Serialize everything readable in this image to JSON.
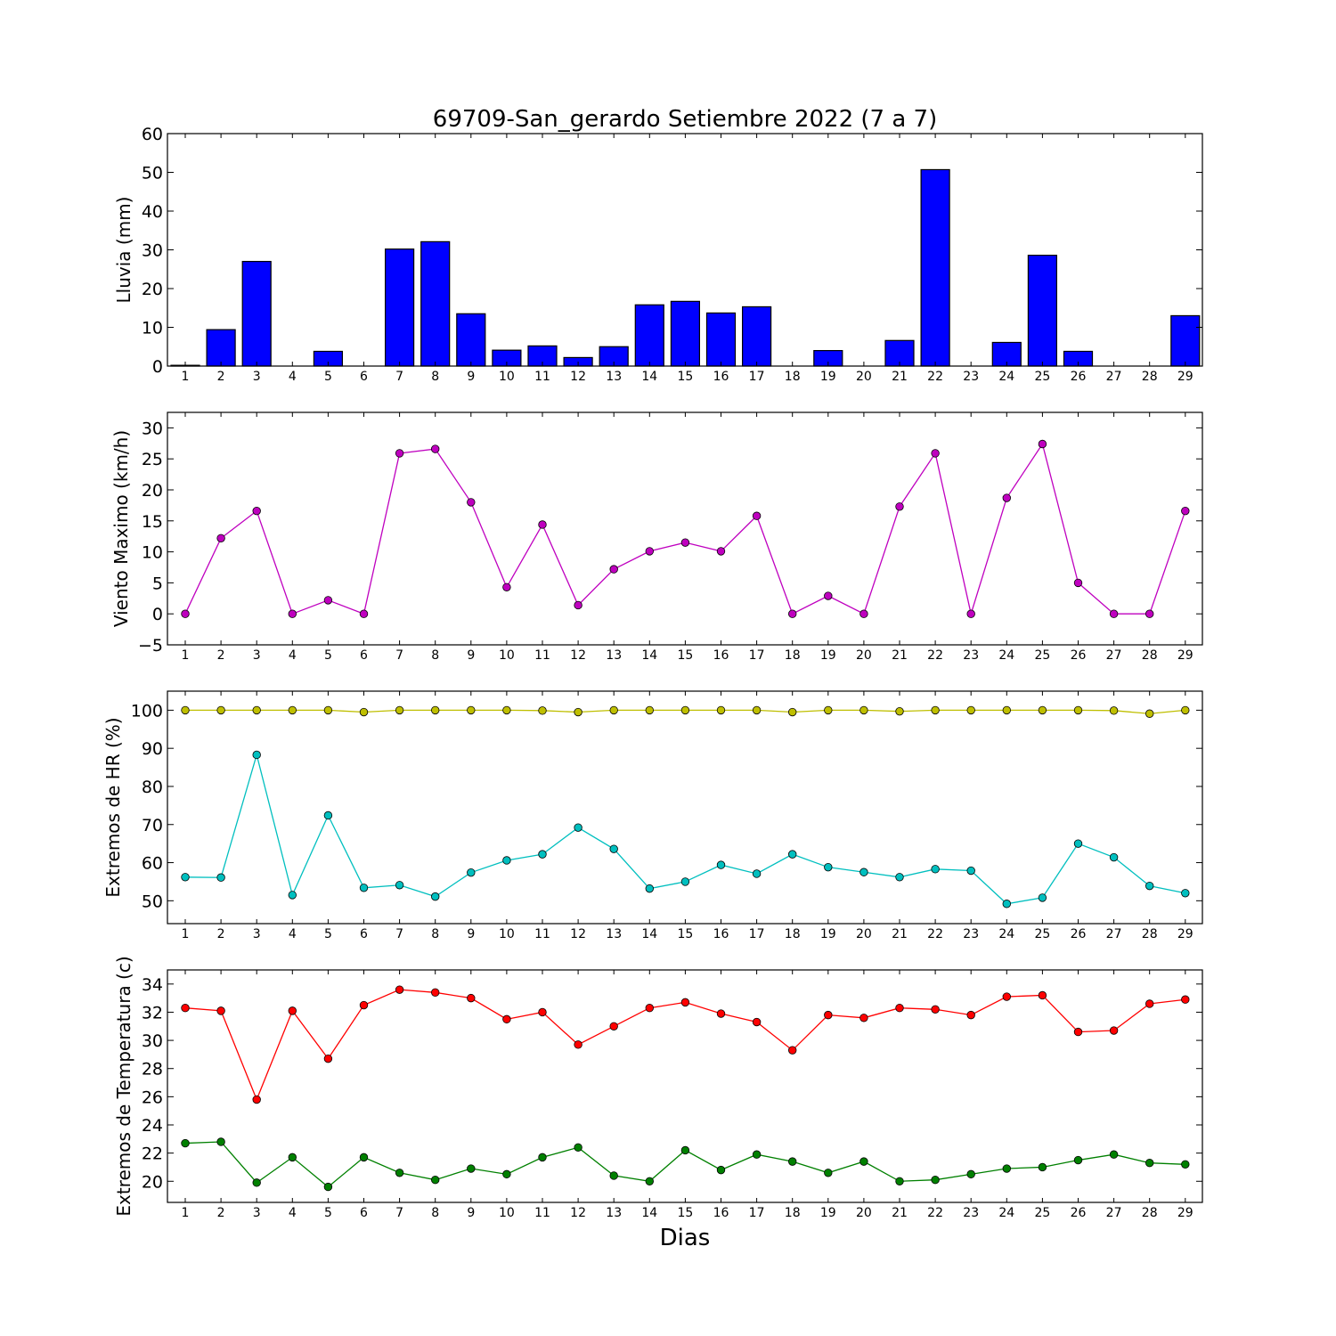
{
  "chart_data": [
    {
      "type": "bar",
      "title": "69709-San_gerardo Setiembre 2022  (7 a 7)",
      "ylabel": "Lluvia (mm)",
      "xlabel": "",
      "categories": [
        "1",
        "2",
        "3",
        "4",
        "5",
        "6",
        "7",
        "8",
        "9",
        "10",
        "11",
        "12",
        "13",
        "14",
        "15",
        "16",
        "17",
        "18",
        "19",
        "20",
        "21",
        "22",
        "23",
        "24",
        "25",
        "26",
        "27",
        "28",
        "29"
      ],
      "values": [
        0.2,
        9.4,
        27.0,
        0,
        3.8,
        0,
        30.2,
        32.1,
        13.5,
        4.1,
        5.2,
        2.2,
        5.0,
        15.8,
        16.7,
        13.7,
        15.3,
        0,
        4.0,
        0,
        6.6,
        50.7,
        0,
        6.1,
        28.6,
        3.8,
        0,
        0,
        13.0
      ],
      "ylim": [
        0,
        60
      ],
      "yticks": [
        "0",
        "10",
        "20",
        "30",
        "40",
        "50",
        "60"
      ],
      "colors": {
        "bar": "#0000ff"
      },
      "grid": false
    },
    {
      "type": "line",
      "ylabel": "Viento Maximo (km/h)",
      "xlabel": "",
      "x": [
        "1",
        "2",
        "3",
        "4",
        "5",
        "6",
        "7",
        "8",
        "9",
        "10",
        "11",
        "12",
        "13",
        "14",
        "15",
        "16",
        "17",
        "18",
        "19",
        "20",
        "21",
        "22",
        "23",
        "24",
        "25",
        "26",
        "27",
        "28",
        "29"
      ],
      "series": [
        {
          "values": [
            0,
            12.2,
            16.6,
            0,
            2.2,
            0,
            25.9,
            26.6,
            18.0,
            4.3,
            14.4,
            1.4,
            7.2,
            10.1,
            11.5,
            10.1,
            15.8,
            0,
            2.9,
            0,
            17.3,
            25.9,
            0,
            18.7,
            27.4,
            5.0,
            0,
            0,
            16.6
          ],
          "color": "#bf00bf"
        }
      ],
      "ylim": [
        -5,
        32.5
      ],
      "yticks": [
        "−5",
        "0",
        "5",
        "10",
        "15",
        "20",
        "25",
        "30"
      ],
      "grid": false
    },
    {
      "type": "line",
      "ylabel": "Extremos de HR (%)",
      "xlabel": "",
      "x": [
        "1",
        "2",
        "3",
        "4",
        "5",
        "6",
        "7",
        "8",
        "9",
        "10",
        "11",
        "12",
        "13",
        "14",
        "15",
        "16",
        "17",
        "18",
        "19",
        "20",
        "21",
        "22",
        "23",
        "24",
        "25",
        "26",
        "27",
        "28",
        "29"
      ],
      "series": [
        {
          "values": [
            100,
            100,
            100,
            100,
            100,
            99.5,
            100,
            100,
            100,
            100,
            99.9,
            99.5,
            100,
            100,
            100,
            100,
            100,
            99.5,
            100,
            100,
            99.7,
            100,
            100,
            100,
            100,
            100,
            99.9,
            99.1,
            100
          ],
          "color": "#bfbf00"
        },
        {
          "values": [
            56.2,
            56.1,
            88.3,
            51.5,
            72.4,
            53.4,
            54.1,
            51.1,
            57.4,
            60.6,
            62.2,
            69.2,
            63.6,
            53.2,
            55.0,
            59.4,
            57.1,
            62.2,
            58.8,
            57.5,
            56.2,
            58.3,
            57.9,
            49.2,
            50.8,
            65.0,
            61.4,
            53.9,
            52.0
          ],
          "color": "#00bfbf"
        }
      ],
      "ylim": [
        44,
        105
      ],
      "yticks": [
        "50",
        "60",
        "70",
        "80",
        "90",
        "100"
      ],
      "grid": false
    },
    {
      "type": "line",
      "ylabel": "Extremos de Temperatura (c)",
      "xlabel": "Dias",
      "x": [
        "1",
        "2",
        "3",
        "4",
        "5",
        "6",
        "7",
        "8",
        "9",
        "10",
        "11",
        "12",
        "13",
        "14",
        "15",
        "16",
        "17",
        "18",
        "19",
        "20",
        "21",
        "22",
        "23",
        "24",
        "25",
        "26",
        "27",
        "28",
        "29"
      ],
      "series": [
        {
          "values": [
            32.3,
            32.1,
            25.8,
            32.1,
            28.7,
            32.5,
            33.6,
            33.4,
            33.0,
            31.5,
            32.0,
            29.7,
            31.0,
            32.3,
            32.7,
            31.9,
            31.3,
            29.3,
            31.8,
            31.6,
            32.3,
            32.2,
            31.8,
            33.1,
            33.2,
            30.6,
            30.7,
            32.6,
            32.9
          ],
          "color": "#ff0000"
        },
        {
          "values": [
            22.7,
            22.8,
            19.9,
            21.7,
            19.6,
            21.7,
            20.6,
            20.1,
            20.9,
            20.5,
            21.7,
            22.4,
            20.4,
            20.0,
            22.2,
            20.8,
            21.9,
            21.4,
            20.6,
            21.4,
            20.0,
            20.1,
            20.5,
            20.9,
            21.0,
            21.5,
            21.9,
            21.3,
            21.2
          ],
          "color": "#008000"
        }
      ],
      "ylim": [
        18.5,
        35
      ],
      "yticks": [
        "20",
        "22",
        "24",
        "26",
        "28",
        "30",
        "32",
        "34"
      ],
      "grid": false
    }
  ]
}
